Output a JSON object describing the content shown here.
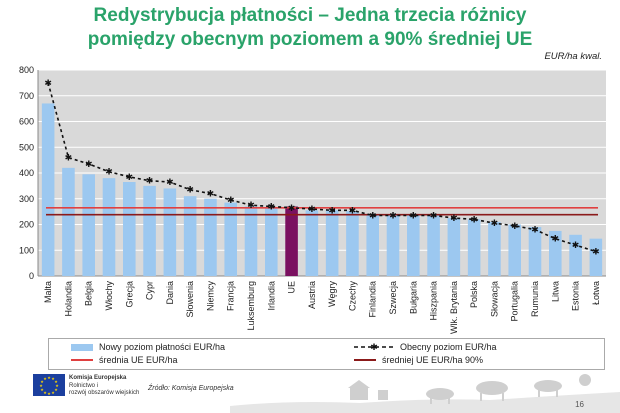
{
  "title_line1": "Redystrybucja płatności – Jedna trzecia różnicy",
  "title_line2": "pomiędzy obecnym poziomem a 90% średniej UE",
  "unit_label": "EUR/ha kwal.",
  "chart_data": {
    "type": "bar",
    "categories": [
      "Malta",
      "Holandia",
      "Belgia",
      "Włochy",
      "Grecja",
      "Cypr",
      "Dania",
      "Słowenia",
      "Niemcy",
      "Francja",
      "Luksemburg",
      "Irlandia",
      "UE",
      "Austria",
      "Węgry",
      "Czechy",
      "Finlandia",
      "Szwecja",
      "Bułgaria",
      "Hiszpania",
      "Wlk. Brytania",
      "Polska",
      "Słowacja",
      "Portugalia",
      "Rumunia",
      "Litwa",
      "Estonia",
      "Łotwa"
    ],
    "highlight_category": "UE",
    "series": [
      {
        "name": "Nowy poziom płatności EUR/ha",
        "kind": "bar",
        "color": "#9cc8f0",
        "highlight_color": "#7a1060",
        "values": [
          670,
          420,
          395,
          380,
          365,
          350,
          340,
          310,
          300,
          285,
          270,
          265,
          270,
          255,
          255,
          252,
          235,
          235,
          235,
          235,
          225,
          220,
          210,
          200,
          190,
          175,
          160,
          145
        ]
      },
      {
        "name": "Obecny poziom EUR/ha",
        "kind": "dashed-line",
        "color": "#111111",
        "values": [
          750,
          460,
          435,
          405,
          385,
          370,
          365,
          335,
          320,
          295,
          275,
          270,
          265,
          260,
          255,
          255,
          235,
          235,
          235,
          235,
          225,
          220,
          205,
          195,
          180,
          145,
          120,
          95
        ]
      },
      {
        "name": "średnia UE EUR/ha",
        "kind": "hline",
        "color": "#e04040",
        "value": 265
      },
      {
        "name": "średniej UE EUR/ha 90%",
        "kind": "hline",
        "color": "#8b1a1a",
        "value": 238
      }
    ],
    "ylim": [
      0,
      800
    ],
    "yticks": [
      0,
      100,
      200,
      300,
      400,
      500,
      600,
      700,
      800
    ],
    "grid": true,
    "xlabel": "",
    "ylabel": "",
    "legend_position": "bottom"
  },
  "legend": {
    "item1": "Nowy poziom płatności EUR/ha",
    "item2": "Obecny poziom EUR/ha",
    "item3": "średnia UE EUR/ha",
    "item4": "średniej UE EUR/ha 90%"
  },
  "footer": {
    "org_line1": "Komisja Europejska",
    "org_line2": "Rolnictwo i",
    "org_line3": "rozwój obszarów wiejskich",
    "source": "Źródło: Komisja Europejska",
    "page_number": "16"
  },
  "colors": {
    "title": "#2aa36a",
    "plot_bg": "#d9d9d9",
    "bar": "#9cc8f0",
    "highlight_bar": "#7a1060"
  }
}
